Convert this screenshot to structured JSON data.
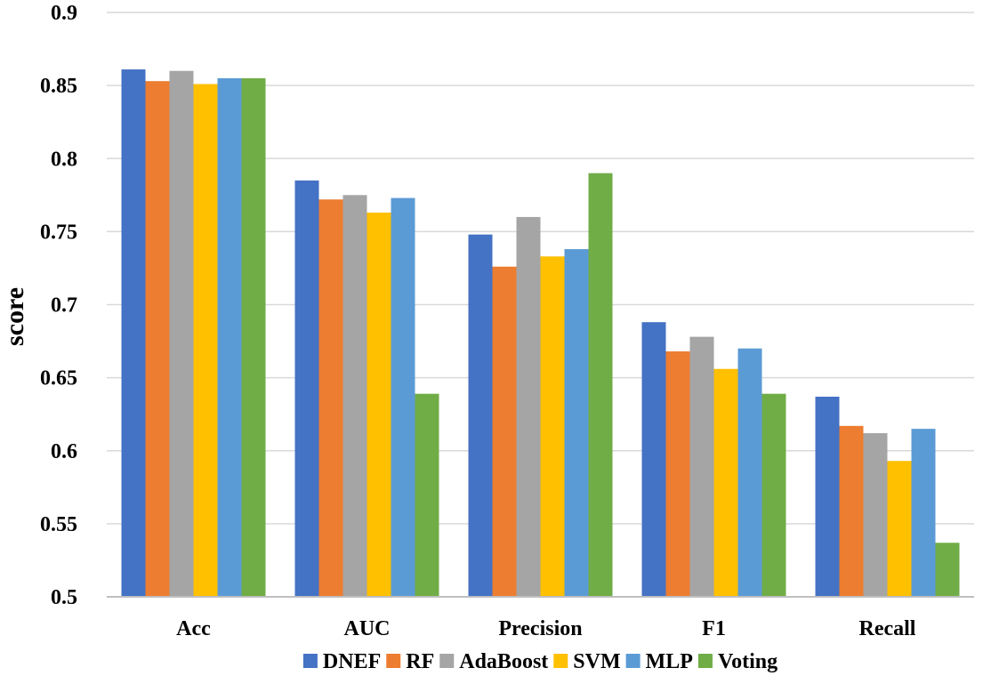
{
  "chart_data": {
    "type": "bar",
    "title": "",
    "xlabel": "",
    "ylabel": "score",
    "ylim": [
      0.5,
      0.9
    ],
    "ytick_step": 0.05,
    "ytick_labels": [
      "0.5",
      "0.55",
      "0.6",
      "0.65",
      "0.7",
      "0.75",
      "0.8",
      "0.85",
      "0.9"
    ],
    "grid": true,
    "legend_position": "bottom",
    "categories": [
      "Acc",
      "AUC",
      "Precision",
      "F1",
      "Recall"
    ],
    "series": [
      {
        "name": "DNEF",
        "color": "#4472C4",
        "values": [
          0.861,
          0.785,
          0.748,
          0.688,
          0.637
        ]
      },
      {
        "name": "RF",
        "color": "#ED7D31",
        "values": [
          0.853,
          0.772,
          0.726,
          0.668,
          0.617
        ]
      },
      {
        "name": "AdaBoost",
        "color": "#A5A5A5",
        "values": [
          0.86,
          0.775,
          0.76,
          0.678,
          0.612
        ]
      },
      {
        "name": "SVM",
        "color": "#FFC000",
        "values": [
          0.851,
          0.763,
          0.733,
          0.656,
          0.593
        ]
      },
      {
        "name": "MLP",
        "color": "#5B9BD5",
        "values": [
          0.855,
          0.773,
          0.738,
          0.67,
          0.615
        ]
      },
      {
        "name": "Voting",
        "color": "#70AD47",
        "values": [
          0.855,
          0.639,
          0.79,
          0.639,
          0.537
        ]
      }
    ]
  }
}
